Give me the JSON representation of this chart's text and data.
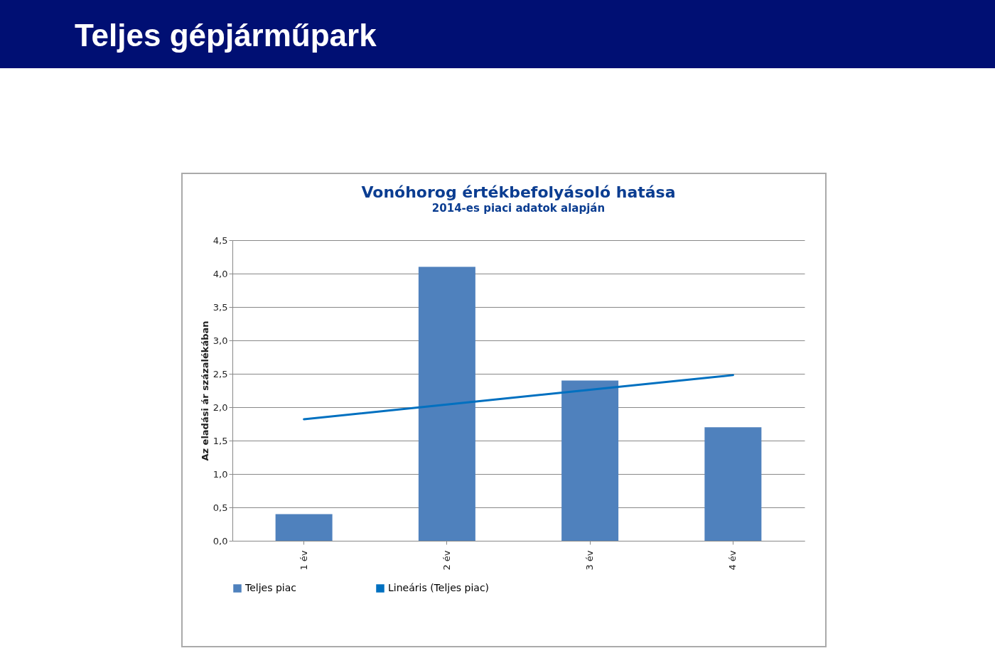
{
  "chart_data": {
    "type": "bar",
    "title": "Vonóhorog értékbefolyásoló hatása",
    "subtitle": "2014-es piaci adatok alapján",
    "annotations": [
      "Teljes gépjárműpark"
    ],
    "ylabel": "Az eladási ár százalékában",
    "categories": [
      "1 év",
      "2 év",
      "3 év",
      "4 év"
    ],
    "series": [
      {
        "name": "Teljes piac",
        "color": "#4f81bd",
        "values": [
          0.4,
          4.1,
          2.4,
          1.7
        ]
      },
      {
        "name": "Lineáris (Teljes piac)",
        "type": "line",
        "color": "#0070c0",
        "values": [
          1.82,
          2.04,
          2.26,
          2.48
        ]
      }
    ],
    "ylim": [
      0,
      4.5
    ],
    "yticks": [
      {
        "value": 0,
        "label": "0,0"
      },
      {
        "value": 0.5,
        "label": "0,5"
      },
      {
        "value": 1,
        "label": "1,0"
      },
      {
        "value": 1.5,
        "label": "1,5"
      },
      {
        "value": 2,
        "label": "2,0"
      },
      {
        "value": 2.5,
        "label": "2,5"
      },
      {
        "value": 3,
        "label": "3,0"
      },
      {
        "value": 3.5,
        "label": "3,5"
      },
      {
        "value": 4,
        "label": "4,0"
      },
      {
        "value": 4.5,
        "label": "4,5"
      }
    ],
    "grid": "y",
    "legend": "bottom"
  }
}
